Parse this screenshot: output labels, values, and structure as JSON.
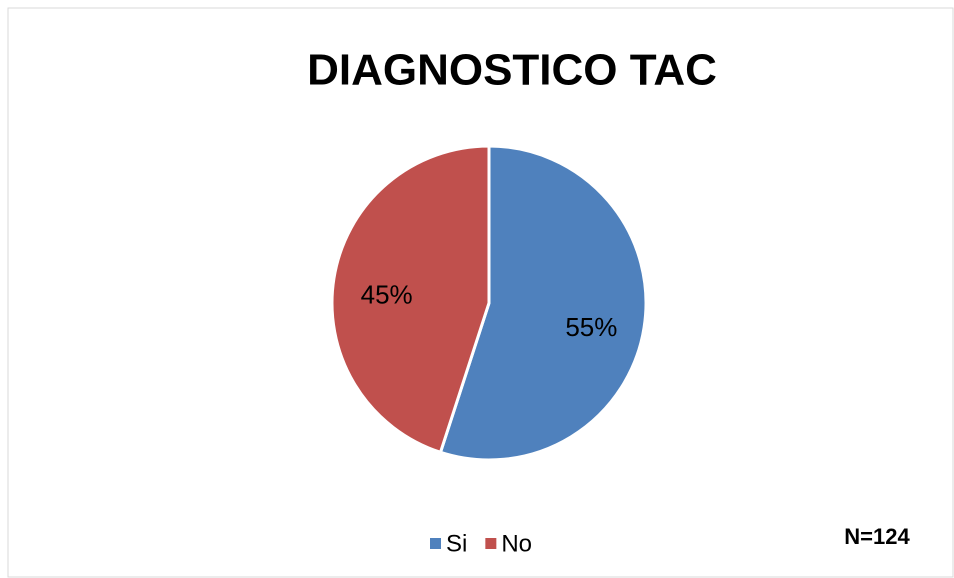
{
  "chart_data": {
    "type": "pie",
    "title": "DIAGNOSTICO TAC",
    "categories": [
      "Si",
      "No"
    ],
    "values": [
      55,
      45
    ],
    "value_labels": [
      "55%",
      "45%"
    ],
    "colors": [
      "#4f81bd",
      "#c0504d"
    ],
    "annotation": "N=124",
    "legend": "bottom"
  }
}
